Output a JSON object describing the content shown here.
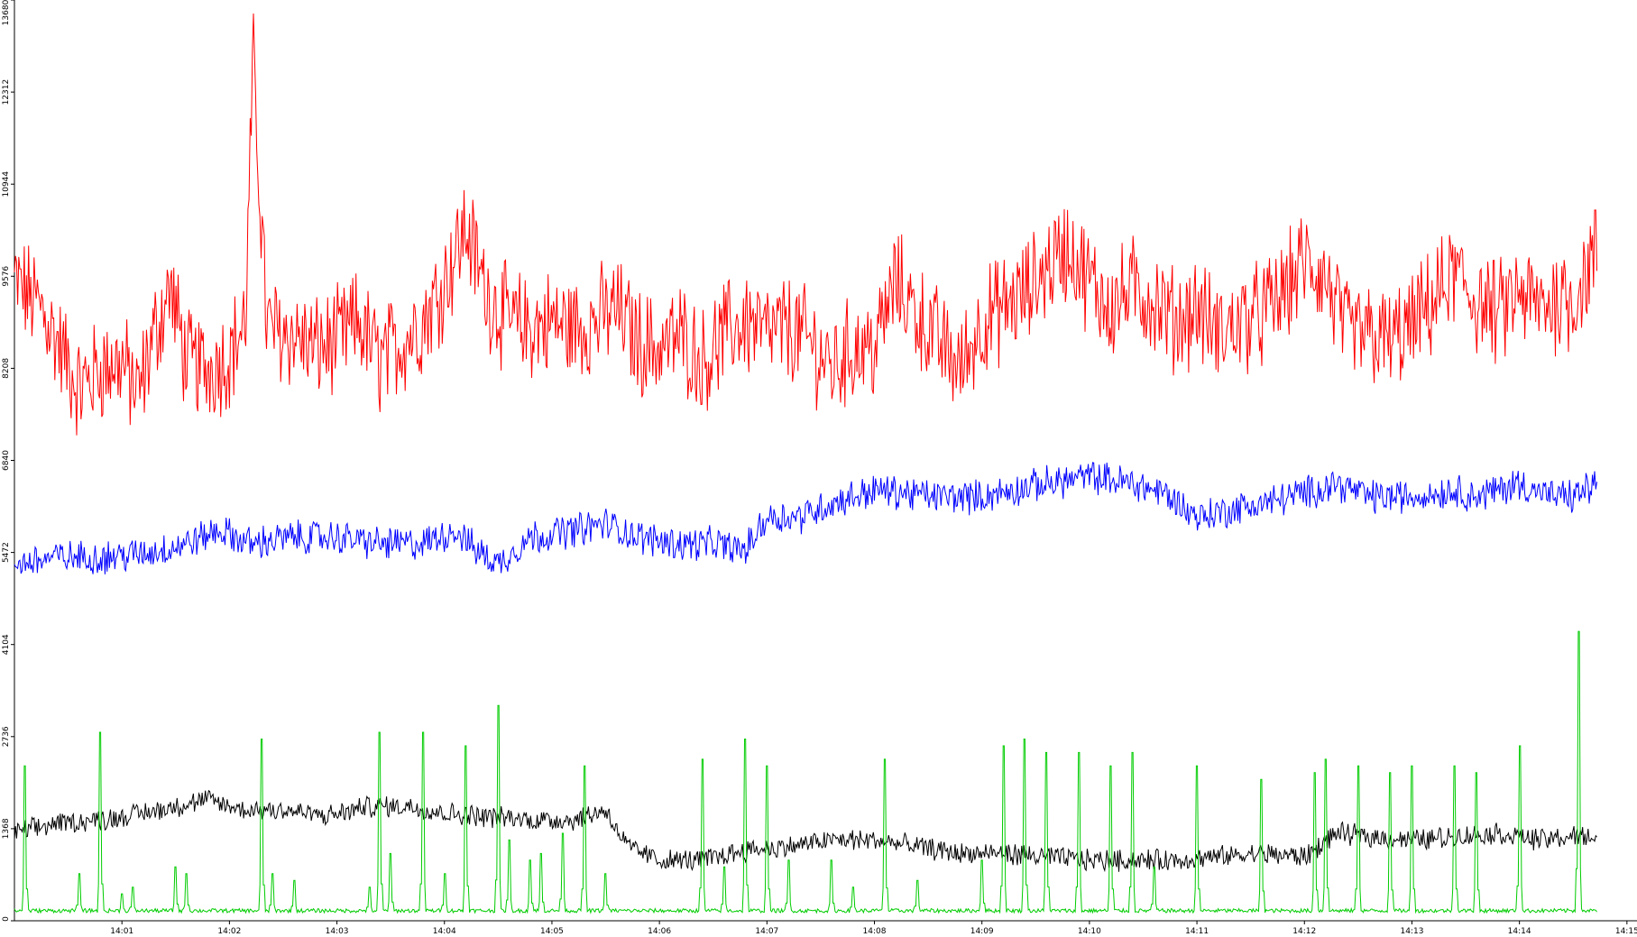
{
  "chart_data": {
    "type": "line",
    "title": "",
    "xlabel": "",
    "ylabel": "",
    "ylim": [
      0,
      13680
    ],
    "y_ticks": [
      "0",
      "1368",
      "2736",
      "4104",
      "5472",
      "6840",
      "8208",
      "9576",
      "10944",
      "12312",
      "13680"
    ],
    "x_ticks": [
      "14:01",
      "14:02",
      "14:03",
      "14:04",
      "14:05",
      "14:06",
      "14:07",
      "14:08",
      "14:09",
      "14:10",
      "14:11",
      "14:12",
      "14:13",
      "14:14",
      "14:15"
    ],
    "x_range_minutes": [
      0,
      14.8
    ],
    "grid": false,
    "legend": "none",
    "series": [
      {
        "color": "#ff0000",
        "points": [
          [
            0,
            9500
          ],
          [
            0.25,
            9100
          ],
          [
            0.4,
            8600
          ],
          [
            0.6,
            7900
          ],
          [
            0.8,
            8200
          ],
          [
            1.0,
            8300
          ],
          [
            1.15,
            7800
          ],
          [
            1.3,
            8700
          ],
          [
            1.45,
            9400
          ],
          [
            1.6,
            8300
          ],
          [
            1.8,
            8200
          ],
          [
            2.0,
            8400
          ],
          [
            2.15,
            8900
          ],
          [
            2.22,
            12800
          ],
          [
            2.35,
            8800
          ],
          [
            2.6,
            8700
          ],
          [
            2.8,
            8500
          ],
          [
            3.0,
            8600
          ],
          [
            3.2,
            8900
          ],
          [
            3.4,
            8300
          ],
          [
            3.6,
            8600
          ],
          [
            3.8,
            8900
          ],
          [
            4.0,
            9500
          ],
          [
            4.2,
            10300
          ],
          [
            4.4,
            9300
          ],
          [
            4.6,
            8900
          ],
          [
            4.8,
            8800
          ],
          [
            5.0,
            8900
          ],
          [
            5.2,
            8800
          ],
          [
            5.4,
            8900
          ],
          [
            5.6,
            9100
          ],
          [
            5.8,
            8600
          ],
          [
            6.0,
            8500
          ],
          [
            6.2,
            8700
          ],
          [
            6.4,
            8300
          ],
          [
            6.6,
            8700
          ],
          [
            6.8,
            8900
          ],
          [
            7.0,
            8700
          ],
          [
            7.2,
            8800
          ],
          [
            7.4,
            8600
          ],
          [
            7.6,
            8200
          ],
          [
            7.8,
            8500
          ],
          [
            8.0,
            8500
          ],
          [
            8.2,
            9500
          ],
          [
            8.4,
            9000
          ],
          [
            8.6,
            8600
          ],
          [
            8.8,
            8200
          ],
          [
            9.0,
            8900
          ],
          [
            9.2,
            9100
          ],
          [
            9.4,
            9300
          ],
          [
            9.6,
            9700
          ],
          [
            9.8,
            10000
          ],
          [
            10.0,
            9500
          ],
          [
            10.2,
            9100
          ],
          [
            10.4,
            9400
          ],
          [
            10.6,
            9200
          ],
          [
            10.8,
            8900
          ],
          [
            11.0,
            9100
          ],
          [
            11.2,
            8700
          ],
          [
            11.4,
            8900
          ],
          [
            11.6,
            9000
          ],
          [
            11.8,
            9300
          ],
          [
            12.0,
            9800
          ],
          [
            12.2,
            9500
          ],
          [
            12.4,
            8700
          ],
          [
            12.6,
            8700
          ],
          [
            12.8,
            8600
          ],
          [
            13.0,
            8800
          ],
          [
            13.2,
            9200
          ],
          [
            13.4,
            9600
          ],
          [
            13.6,
            9200
          ],
          [
            13.8,
            9000
          ],
          [
            14.0,
            9300
          ],
          [
            14.2,
            9100
          ],
          [
            14.4,
            9300
          ],
          [
            14.5,
            9200
          ],
          [
            14.65,
            9700
          ],
          [
            14.72,
            9900
          ]
        ]
      },
      {
        "color": "#0000ff",
        "points": [
          [
            0,
            5300
          ],
          [
            0.4,
            5400
          ],
          [
            0.8,
            5400
          ],
          [
            1.2,
            5450
          ],
          [
            1.6,
            5600
          ],
          [
            1.9,
            5800
          ],
          [
            2.2,
            5600
          ],
          [
            2.6,
            5700
          ],
          [
            3.0,
            5700
          ],
          [
            3.4,
            5600
          ],
          [
            3.8,
            5600
          ],
          [
            4.1,
            5800
          ],
          [
            4.3,
            5500
          ],
          [
            4.5,
            5300
          ],
          [
            4.8,
            5700
          ],
          [
            5.2,
            5800
          ],
          [
            5.5,
            5900
          ],
          [
            5.8,
            5700
          ],
          [
            6.2,
            5600
          ],
          [
            6.5,
            5600
          ],
          [
            6.8,
            5500
          ],
          [
            7.0,
            6000
          ],
          [
            7.3,
            6000
          ],
          [
            7.6,
            6200
          ],
          [
            8.0,
            6400
          ],
          [
            8.3,
            6350
          ],
          [
            8.6,
            6300
          ],
          [
            9.0,
            6300
          ],
          [
            9.3,
            6400
          ],
          [
            9.6,
            6500
          ],
          [
            10.0,
            6600
          ],
          [
            10.4,
            6500
          ],
          [
            10.7,
            6350
          ],
          [
            11.0,
            6000
          ],
          [
            11.3,
            6100
          ],
          [
            11.6,
            6200
          ],
          [
            12.0,
            6350
          ],
          [
            12.3,
            6500
          ],
          [
            12.6,
            6300
          ],
          [
            13.0,
            6300
          ],
          [
            13.4,
            6400
          ],
          [
            13.6,
            6300
          ],
          [
            13.8,
            6400
          ],
          [
            14.0,
            6500
          ],
          [
            14.3,
            6300
          ],
          [
            14.5,
            6300
          ],
          [
            14.72,
            6500
          ]
        ]
      },
      {
        "color": "#000000",
        "points": [
          [
            0,
            1300
          ],
          [
            0.4,
            1450
          ],
          [
            0.8,
            1500
          ],
          [
            1.2,
            1600
          ],
          [
            1.5,
            1700
          ],
          [
            1.8,
            1800
          ],
          [
            2.1,
            1650
          ],
          [
            2.5,
            1650
          ],
          [
            2.9,
            1550
          ],
          [
            3.3,
            1700
          ],
          [
            3.7,
            1700
          ],
          [
            4.0,
            1600
          ],
          [
            4.4,
            1550
          ],
          [
            4.8,
            1500
          ],
          [
            5.2,
            1500
          ],
          [
            5.5,
            1650
          ],
          [
            5.7,
            1100
          ],
          [
            6.0,
            900
          ],
          [
            6.4,
            900
          ],
          [
            6.8,
            1050
          ],
          [
            7.2,
            1100
          ],
          [
            7.6,
            1200
          ],
          [
            8.0,
            1200
          ],
          [
            8.4,
            1100
          ],
          [
            8.8,
            1000
          ],
          [
            9.2,
            1000
          ],
          [
            9.6,
            950
          ],
          [
            10.0,
            900
          ],
          [
            10.4,
            900
          ],
          [
            10.8,
            900
          ],
          [
            11.2,
            950
          ],
          [
            11.6,
            1000
          ],
          [
            12.0,
            950
          ],
          [
            12.3,
            1300
          ],
          [
            12.6,
            1250
          ],
          [
            13.0,
            1200
          ],
          [
            13.4,
            1250
          ],
          [
            13.8,
            1300
          ],
          [
            14.2,
            1200
          ],
          [
            14.5,
            1250
          ],
          [
            14.72,
            1250
          ]
        ]
      },
      {
        "color": "#00cc00",
        "baseline": 150,
        "spikes": [
          [
            0.1,
            2300
          ],
          [
            0.6,
            700
          ],
          [
            0.8,
            2800
          ],
          [
            1.0,
            400
          ],
          [
            1.1,
            500
          ],
          [
            1.5,
            800
          ],
          [
            1.6,
            700
          ],
          [
            2.3,
            2700
          ],
          [
            2.4,
            700
          ],
          [
            2.6,
            600
          ],
          [
            3.3,
            500
          ],
          [
            3.4,
            2800
          ],
          [
            3.5,
            1000
          ],
          [
            3.8,
            2800
          ],
          [
            4.0,
            700
          ],
          [
            4.2,
            2600
          ],
          [
            4.5,
            3200
          ],
          [
            4.6,
            1200
          ],
          [
            4.8,
            900
          ],
          [
            4.9,
            1000
          ],
          [
            5.1,
            1300
          ],
          [
            5.3,
            2300
          ],
          [
            5.5,
            700
          ],
          [
            6.4,
            2400
          ],
          [
            6.6,
            800
          ],
          [
            6.8,
            2700
          ],
          [
            7.0,
            2300
          ],
          [
            7.2,
            900
          ],
          [
            7.6,
            900
          ],
          [
            7.8,
            500
          ],
          [
            8.1,
            2400
          ],
          [
            8.4,
            600
          ],
          [
            9.0,
            900
          ],
          [
            9.2,
            2600
          ],
          [
            9.4,
            2700
          ],
          [
            9.6,
            2500
          ],
          [
            9.9,
            2500
          ],
          [
            10.2,
            2300
          ],
          [
            10.4,
            2500
          ],
          [
            10.6,
            800
          ],
          [
            11.0,
            2300
          ],
          [
            11.6,
            2100
          ],
          [
            12.1,
            2200
          ],
          [
            12.2,
            2400
          ],
          [
            12.5,
            2300
          ],
          [
            12.8,
            2200
          ],
          [
            13.0,
            2300
          ],
          [
            13.4,
            2300
          ],
          [
            13.6,
            2200
          ],
          [
            14.0,
            2600
          ],
          [
            14.55,
            4300
          ]
        ]
      }
    ]
  }
}
